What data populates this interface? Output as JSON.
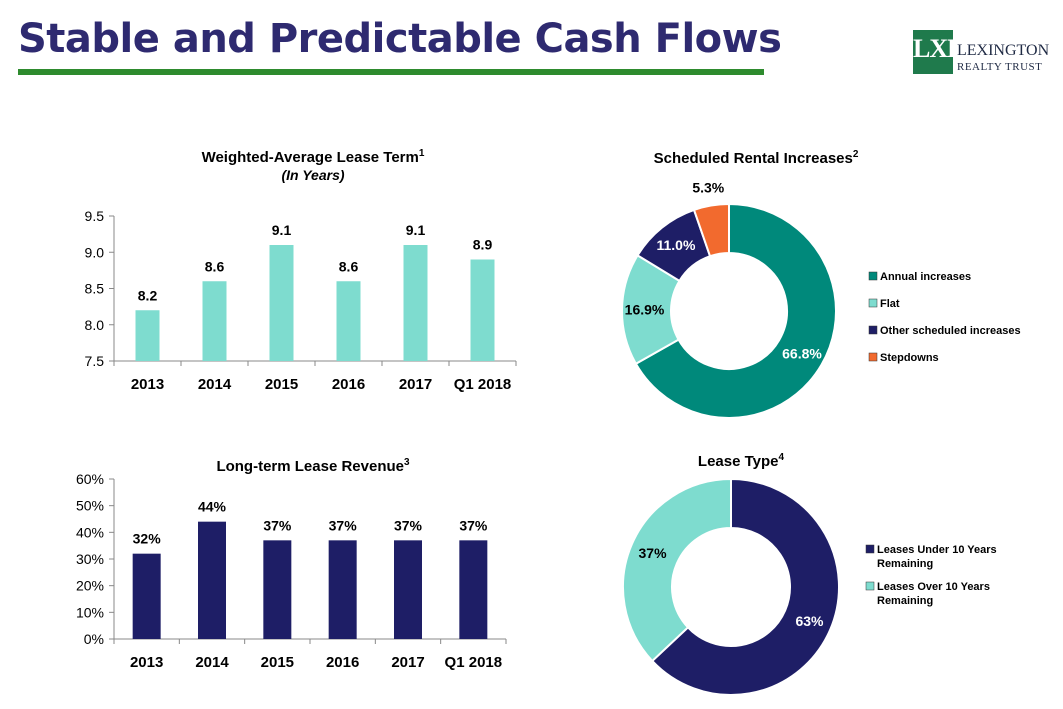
{
  "header": {
    "title": "Stable and Predictable Cash Flows"
  },
  "logo": {
    "mark": "LXP",
    "name": "LEXINGTON",
    "sub": "REALTY TRUST"
  },
  "colors": {
    "teal_light": "#7edccf",
    "navy": "#1e1e66",
    "teal_dark": "#00897b",
    "orange": "#f26a2e",
    "title": "#2e2a70",
    "rule": "#2e8b2e"
  },
  "chart_data": [
    {
      "type": "bar",
      "title": "Weighted-Average Lease Term",
      "title_sup": "1",
      "subtitle": "(In Years)",
      "categories": [
        "2013",
        "2014",
        "2015",
        "2016",
        "2017",
        "Q1 2018"
      ],
      "values": [
        8.2,
        8.6,
        9.1,
        8.6,
        9.1,
        8.9
      ],
      "data_labels": [
        "8.2",
        "8.6",
        "9.1",
        "8.6",
        "9.1",
        "8.9"
      ],
      "y_ticks": [
        "7.5",
        "8.0",
        "8.5",
        "9.0",
        "9.5"
      ],
      "ylim": [
        7.5,
        9.5
      ],
      "color": "#7edccf"
    },
    {
      "type": "bar",
      "title": "Long-term Lease Revenue",
      "title_sup": "3",
      "categories": [
        "2013",
        "2014",
        "2015",
        "2016",
        "2017",
        "Q1 2018"
      ],
      "values": [
        32,
        44,
        37,
        37,
        37,
        37
      ],
      "data_labels": [
        "32%",
        "44%",
        "37%",
        "37%",
        "37%",
        "37%"
      ],
      "y_ticks": [
        "0%",
        "10%",
        "20%",
        "30%",
        "40%",
        "50%",
        "60%"
      ],
      "ylim": [
        0,
        60
      ],
      "color": "#1e1e66"
    },
    {
      "type": "pie",
      "title": "Scheduled Rental Increases",
      "title_sup": "2",
      "legend_position": "right",
      "slices": [
        {
          "name": "Annual increases",
          "value": 66.8,
          "label": "66.8%",
          "color": "#00897b"
        },
        {
          "name": "Flat",
          "value": 16.9,
          "label": "16.9%",
          "color": "#7edccf"
        },
        {
          "name": "Other scheduled increases",
          "value": 11.0,
          "label": "11.0%",
          "color": "#1e1e66"
        },
        {
          "name": "Stepdowns",
          "value": 5.3,
          "label": "5.3%",
          "color": "#f26a2e"
        }
      ]
    },
    {
      "type": "pie",
      "title": "Lease Type",
      "title_sup": "4",
      "legend_position": "right",
      "slices": [
        {
          "name": "Leases Under 10 Years Remaining",
          "value": 63,
          "label": "63%",
          "color": "#1e1e66"
        },
        {
          "name": "Leases Over 10 Years Remaining",
          "value": 37,
          "label": "37%",
          "color": "#7edccf"
        }
      ]
    }
  ]
}
